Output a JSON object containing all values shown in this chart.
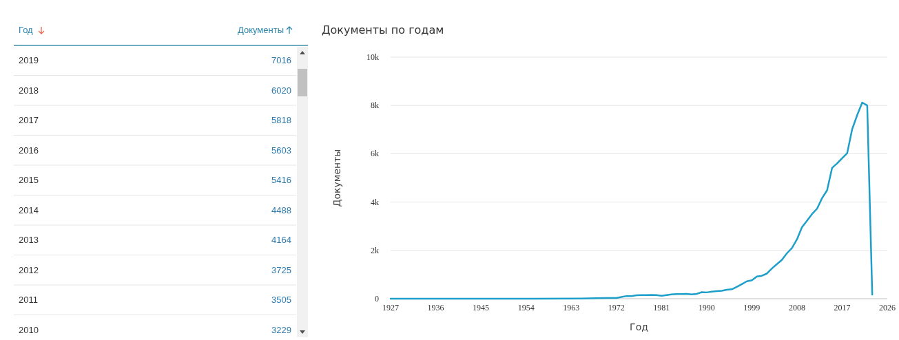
{
  "chart_data": [
    {
      "type": "heatmap",
      "ylabel": "Год",
      "categories": [
        "Документы"
      ],
      "y_categories": [
        "2019",
        "2018",
        "2017",
        "2016",
        "2015",
        "2014",
        "2013",
        "2012",
        "2011",
        "2010"
      ],
      "cells": [
        [
          7016
        ],
        [
          6020
        ],
        [
          5818
        ],
        [
          5603
        ],
        [
          5416
        ],
        [
          4488
        ],
        [
          4164
        ],
        [
          3725
        ],
        [
          3505
        ],
        [
          3229
        ]
      ],
      "data_labels": true
    },
    {
      "type": "line",
      "title": "Документы по годам",
      "xlabel": "Год",
      "ylabel": "Документы",
      "xlim": [
        1927,
        2026
      ],
      "xticks": [
        1927,
        1936,
        1945,
        1954,
        1963,
        1972,
        1981,
        1990,
        1999,
        2008,
        2017,
        2026
      ],
      "ylim": [
        0,
        10000
      ],
      "yticks": [
        0,
        {
          "value": 2000,
          "label": "2k"
        },
        {
          "value": 4000,
          "label": "4k"
        },
        {
          "value": 6000,
          "label": "6k"
        },
        {
          "value": 8000,
          "label": "8k"
        },
        {
          "value": 10000,
          "label": "10k"
        }
      ],
      "grid": "y",
      "series": [
        {
          "color": "#1e9fc9",
          "x": [
            1927,
            1935,
            1945,
            1955,
            1965,
            1968,
            1970,
            1971,
            1972,
            1973,
            1974,
            1975,
            1976,
            1977,
            1978,
            1979,
            1980,
            1981,
            1982,
            1983,
            1984,
            1985,
            1986,
            1987,
            1988,
            1989,
            1990,
            1991,
            1992,
            1993,
            1994,
            1995,
            1996,
            1997,
            1998,
            1999,
            2000,
            2001,
            2002,
            2003,
            2004,
            2005,
            2006,
            2007,
            2008,
            2009,
            2010,
            2011,
            2012,
            2013,
            2014,
            2015,
            2016,
            2017,
            2018,
            2019,
            2020,
            2021,
            2022,
            2023
          ],
          "values": [
            0,
            0,
            0,
            0,
            10,
            20,
            30,
            30,
            30,
            70,
            110,
            110,
            140,
            150,
            150,
            160,
            150,
            120,
            150,
            180,
            190,
            190,
            200,
            180,
            200,
            270,
            260,
            290,
            310,
            330,
            370,
            390,
            490,
            600,
            720,
            760,
            920,
            950,
            1040,
            1250,
            1430,
            1610,
            1880,
            2100,
            2460,
            2960,
            3229,
            3505,
            3725,
            4164,
            4488,
            5416,
            5603,
            5818,
            6020,
            7016,
            7600,
            8120,
            8000,
            170
          ]
        }
      ]
    }
  ]
}
